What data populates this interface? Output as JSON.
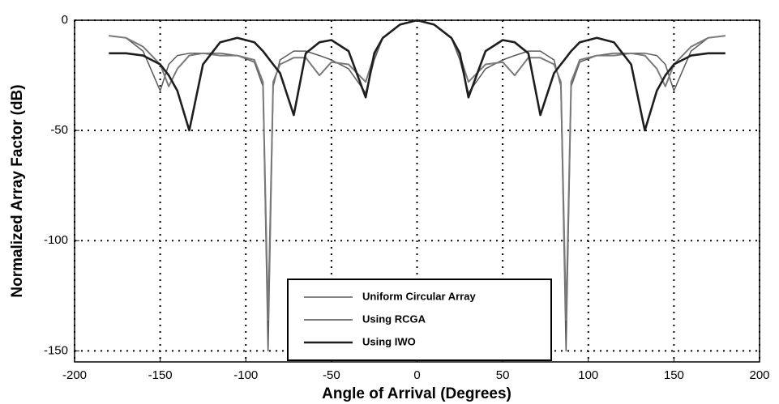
{
  "chart_data": {
    "type": "line",
    "x_label": "Angle of Arrival (Degrees)",
    "y_label": "Normalized Array Factor (dB)",
    "xlim": [
      -200,
      200
    ],
    "xticks": [
      -200,
      -150,
      -100,
      -50,
      0,
      50,
      100,
      150,
      200
    ],
    "ylim": [
      -155,
      0
    ],
    "yticks": [
      -150,
      -100,
      -50,
      0
    ],
    "grid": true,
    "legend": "lower center",
    "x": [
      -180,
      -170,
      -160,
      -150,
      -145,
      -140,
      -133,
      -125,
      -115,
      -105,
      -95,
      -90,
      -87,
      -84,
      -80,
      -72,
      -65,
      -57,
      -50,
      -40,
      -30,
      -25,
      -20,
      -10,
      0,
      10,
      20,
      25,
      30,
      40,
      50,
      57,
      65,
      72,
      80,
      84,
      87,
      90,
      95,
      105,
      115,
      125,
      133,
      140,
      145,
      150,
      160,
      170,
      180
    ],
    "series": [
      {
        "name": "Uniform Circular Array",
        "color": "#5a5a5a",
        "values": [
          -7,
          -8,
          -14,
          -32,
          -20,
          -16,
          -15,
          -15,
          -15,
          -16,
          -19,
          -30,
          -150,
          -30,
          -18,
          -14,
          -14,
          -16,
          -18,
          -22,
          -33,
          -18,
          -8,
          -2,
          0,
          -2,
          -8,
          -18,
          -33,
          -22,
          -18,
          -16,
          -14,
          -14,
          -18,
          -30,
          -150,
          -30,
          -19,
          -16,
          -15,
          -15,
          -15,
          -16,
          -20,
          -32,
          -14,
          -8,
          -7
        ]
      },
      {
        "name": "Using RCGA",
        "color": "#7a7a7a",
        "values": [
          -7,
          -8,
          -12,
          -20,
          -30,
          -22,
          -16,
          -15,
          -16,
          -16,
          -18,
          -28,
          -136,
          -28,
          -20,
          -17,
          -17,
          -25,
          -19,
          -20,
          -28,
          -16,
          -8,
          -2,
          0,
          -2,
          -8,
          -16,
          -28,
          -20,
          -19,
          -25,
          -17,
          -17,
          -20,
          -28,
          -136,
          -28,
          -18,
          -16,
          -16,
          -15,
          -16,
          -22,
          -30,
          -20,
          -12,
          -8,
          -7
        ]
      },
      {
        "name": "Using IWO",
        "color": "#1e1e1e",
        "values": [
          -15,
          -15,
          -16,
          -20,
          -25,
          -32,
          -50,
          -20,
          -10,
          -8,
          -10,
          -14,
          -17,
          -20,
          -24,
          -43,
          -15,
          -10,
          -9,
          -14,
          -35,
          -15,
          -8,
          -2,
          0,
          -2,
          -8,
          -15,
          -35,
          -14,
          -9,
          -10,
          -15,
          -43,
          -24,
          -20,
          -17,
          -14,
          -10,
          -8,
          -10,
          -20,
          -50,
          -32,
          -25,
          -20,
          -16,
          -15,
          -15
        ]
      }
    ]
  }
}
